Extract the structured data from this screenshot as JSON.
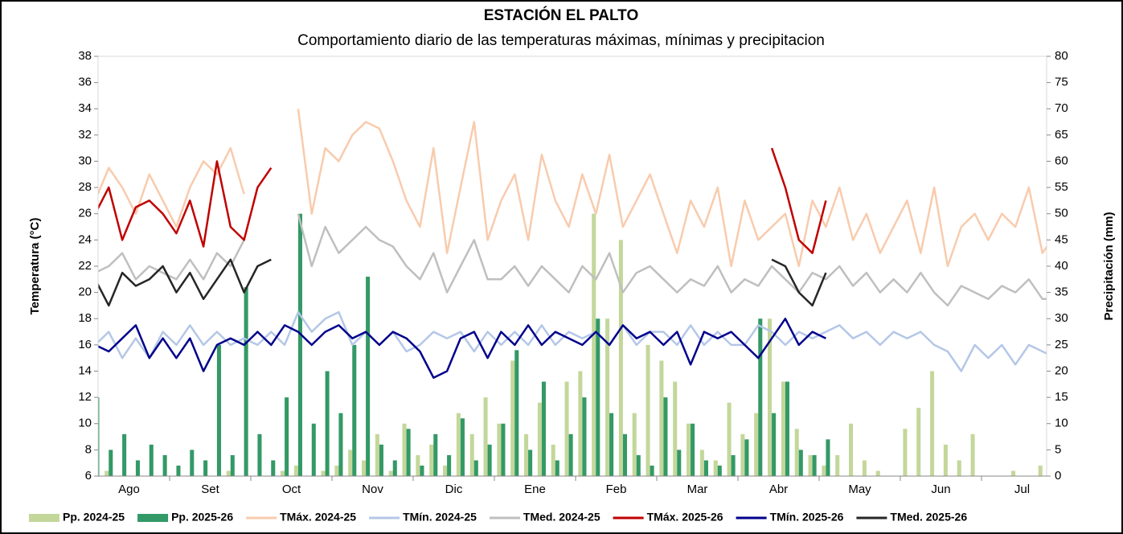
{
  "chart_data": {
    "type": "line-bar",
    "title": "ESTACIÓN EL PALTO",
    "subtitle": "Comportamiento diario de las temperaturas máximas, mínimas y precipitacion",
    "y_label": "Temperatura (°C)",
    "y2_label": "Precipitación (mm)",
    "categories": [
      "Ago",
      "Set",
      "Oct",
      "Nov",
      "Dic",
      "Ene",
      "Feb",
      "Mar",
      "Abr",
      "May",
      "Jun",
      "Jul"
    ],
    "ylim": [
      6,
      38
    ],
    "yticks": [
      6,
      8,
      10,
      12,
      14,
      16,
      18,
      20,
      22,
      24,
      26,
      28,
      30,
      32,
      34,
      36,
      38
    ],
    "y2lim": [
      0,
      80
    ],
    "y2ticks": [
      0,
      5,
      10,
      15,
      20,
      25,
      30,
      35,
      40,
      45,
      50,
      55,
      60,
      65,
      70,
      75,
      80
    ],
    "series": [
      {
        "name": "Pp. 2024-25",
        "kind": "bar",
        "axis": "y2",
        "color": "#c4d79b",
        "values": [
          [
            0,
            1,
            0,
            0,
            0,
            0
          ],
          [
            0,
            0,
            0,
            0,
            1,
            0
          ],
          [
            0,
            0,
            1,
            2,
            0,
            1
          ],
          [
            2,
            5,
            3,
            8,
            1,
            10
          ],
          [
            4,
            6,
            2,
            12,
            8,
            15
          ],
          [
            10,
            22,
            8,
            14,
            6,
            18
          ],
          [
            20,
            50,
            30,
            45,
            12,
            25
          ],
          [
            22,
            18,
            10,
            5,
            3,
            14
          ],
          [
            8,
            12,
            30,
            18,
            9,
            4
          ],
          [
            2,
            4,
            10,
            3,
            1,
            0
          ],
          [
            9,
            13,
            20,
            6,
            3,
            8
          ],
          [
            0,
            0,
            1,
            0,
            2,
            5
          ]
        ]
      },
      {
        "name": "Pp. 2025-26",
        "kind": "bar",
        "axis": "y2",
        "color": "#339966",
        "values": [
          [
            15,
            5,
            8,
            3,
            6,
            4
          ],
          [
            2,
            5,
            3,
            25,
            4,
            36
          ],
          [
            8,
            3,
            15,
            50,
            10,
            20
          ],
          [
            12,
            25,
            38,
            6,
            3,
            9
          ],
          [
            2,
            8,
            4,
            11,
            3,
            6
          ],
          [
            10,
            24,
            5,
            18,
            3,
            8
          ],
          [
            15,
            30,
            12,
            8,
            4,
            2
          ],
          [
            15,
            5,
            10,
            3,
            2,
            4
          ],
          [
            7,
            30,
            12,
            18,
            5,
            4
          ],
          [
            7,
            null,
            null,
            null,
            null,
            null
          ],
          [
            null,
            null,
            null,
            null,
            null,
            null
          ],
          [
            null,
            null,
            null,
            null,
            null,
            null
          ]
        ]
      },
      {
        "name": "TMáx. 2024-25",
        "kind": "line",
        "color": "#f8cbad",
        "values": [
          [
            27,
            29.5,
            28,
            26,
            29,
            27
          ],
          [
            25,
            28,
            30,
            29,
            31,
            27.5
          ],
          [
            null,
            null,
            null,
            34,
            26,
            31
          ],
          [
            30,
            32,
            33,
            32.5,
            30,
            27
          ],
          [
            25,
            31,
            23,
            28,
            33,
            24
          ],
          [
            27,
            29,
            24,
            30.5,
            27,
            25
          ],
          [
            29,
            26,
            30.5,
            25,
            27,
            29
          ],
          [
            26,
            23,
            27,
            25,
            28,
            22
          ],
          [
            27,
            24,
            25,
            26,
            22,
            27
          ],
          [
            25,
            28,
            24,
            26,
            23,
            25
          ],
          [
            27,
            23,
            28,
            22,
            25,
            26
          ],
          [
            24,
            26,
            25,
            28,
            23,
            24.5
          ]
        ]
      },
      {
        "name": "TMín. 2024-25",
        "kind": "line",
        "color": "#b4c7e7",
        "values": [
          [
            16,
            17,
            15,
            16.5,
            15,
            17
          ],
          [
            16,
            17.5,
            16,
            17,
            16,
            16.5
          ],
          [
            16,
            17,
            16,
            18.5,
            17,
            18
          ],
          [
            18.5,
            16,
            17,
            16,
            17,
            15.5
          ],
          [
            16,
            17,
            16.5,
            17,
            15.5,
            17
          ],
          [
            16,
            17,
            16,
            17.5,
            16,
            17
          ],
          [
            16.5,
            17,
            16,
            17.5,
            16,
            17
          ],
          [
            17,
            16,
            17.5,
            16,
            17,
            16
          ],
          [
            16,
            17.5,
            17,
            16,
            17,
            16.5
          ],
          [
            17,
            17.5,
            16.5,
            17,
            16,
            17
          ],
          [
            16.5,
            17,
            16,
            15.5,
            14,
            16
          ],
          [
            15,
            16,
            14.5,
            16,
            15.5,
            15
          ]
        ]
      },
      {
        "name": "TMed. 2024-25",
        "kind": "line",
        "color": "#bfbfbf",
        "values": [
          [
            21.5,
            22,
            23,
            21,
            22,
            21.5
          ],
          [
            21,
            22.5,
            21,
            23,
            22,
            24
          ],
          [
            null,
            null,
            null,
            26,
            22,
            25
          ],
          [
            23,
            24,
            25,
            24,
            23.5,
            22
          ],
          [
            21,
            23,
            20,
            22,
            24,
            21
          ],
          [
            21,
            22,
            20.5,
            22,
            21,
            20
          ],
          [
            22,
            21,
            23,
            20,
            21.5,
            22
          ],
          [
            21,
            20,
            21,
            20.5,
            22,
            20
          ],
          [
            21,
            20.5,
            22,
            21,
            20,
            21.5
          ],
          [
            21,
            22,
            20.5,
            21.5,
            20,
            21
          ],
          [
            20,
            21.5,
            20,
            19,
            20.5,
            20
          ],
          [
            19.5,
            20.5,
            20,
            21,
            19.5,
            19.5
          ]
        ]
      },
      {
        "name": "TMáx. 2025-26",
        "kind": "line",
        "color": "#c00000",
        "values": [
          [
            26,
            28,
            24,
            26.5,
            27,
            26
          ],
          [
            24.5,
            27,
            23.5,
            30,
            25,
            24
          ],
          [
            28,
            29.5,
            null,
            null,
            null,
            null
          ],
          [
            null,
            null,
            null,
            null,
            null,
            null
          ],
          [
            null,
            null,
            null,
            null,
            null,
            null
          ],
          [
            null,
            null,
            null,
            null,
            null,
            null
          ],
          [
            null,
            null,
            null,
            null,
            null,
            null
          ],
          [
            null,
            null,
            null,
            null,
            null,
            null
          ],
          [
            null,
            null,
            31,
            28,
            24,
            23
          ],
          [
            27,
            null,
            null,
            null,
            null,
            null
          ],
          [
            null,
            null,
            null,
            null,
            null,
            null
          ],
          [
            null,
            null,
            null,
            null,
            null,
            null
          ]
        ]
      },
      {
        "name": "TMín. 2025-26",
        "kind": "line",
        "color": "#00008b",
        "values": [
          [
            16,
            15.5,
            16.5,
            17.5,
            15,
            16.5
          ],
          [
            15,
            16.5,
            14,
            16,
            16.5,
            16
          ],
          [
            17,
            16,
            17.5,
            17,
            16,
            17
          ],
          [
            17.5,
            16.5,
            17,
            16,
            17,
            16.5
          ],
          [
            15.5,
            13.5,
            14,
            16.5,
            17,
            15
          ],
          [
            17,
            16,
            17.5,
            16,
            17,
            16.5
          ],
          [
            16,
            17,
            16,
            17.5,
            16.5,
            17
          ],
          [
            16,
            17,
            14.5,
            17,
            16.5,
            17
          ],
          [
            16,
            15,
            16.5,
            18,
            16,
            17
          ],
          [
            16.5,
            null,
            null,
            null,
            null,
            null
          ],
          [
            null,
            null,
            null,
            null,
            null,
            null
          ],
          [
            null,
            null,
            null,
            null,
            null,
            null
          ]
        ]
      },
      {
        "name": "TMed. 2025-26",
        "kind": "line",
        "color": "#262626",
        "values": [
          [
            21,
            19,
            21.5,
            20.5,
            21,
            22
          ],
          [
            20,
            21.5,
            19.5,
            21,
            22.5,
            20
          ],
          [
            22,
            22.5,
            null,
            null,
            null,
            null
          ],
          [
            null,
            null,
            null,
            null,
            null,
            null
          ],
          [
            null,
            null,
            null,
            null,
            null,
            null
          ],
          [
            null,
            null,
            null,
            null,
            null,
            null
          ],
          [
            null,
            null,
            null,
            null,
            null,
            null
          ],
          [
            null,
            null,
            null,
            null,
            null,
            null
          ],
          [
            null,
            null,
            22.5,
            22,
            20,
            19
          ],
          [
            21.5,
            null,
            null,
            null,
            null,
            null
          ],
          [
            null,
            null,
            null,
            null,
            null,
            null
          ],
          [
            null,
            null,
            null,
            null,
            null,
            null
          ]
        ]
      }
    ]
  }
}
